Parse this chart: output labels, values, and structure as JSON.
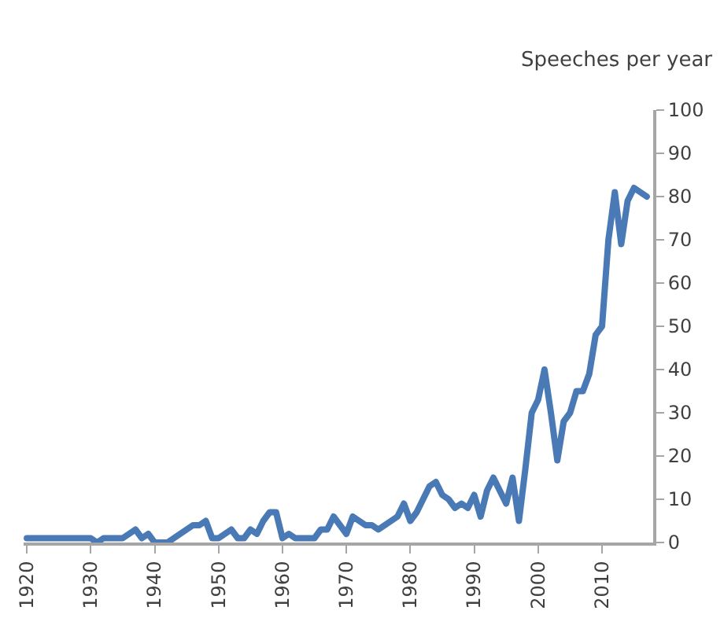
{
  "chart_data": {
    "type": "line",
    "ylabel": "Speeches per year",
    "x": [
      1920,
      1921,
      1922,
      1923,
      1924,
      1925,
      1926,
      1927,
      1928,
      1929,
      1930,
      1931,
      1932,
      1933,
      1934,
      1935,
      1936,
      1937,
      1938,
      1939,
      1940,
      1941,
      1942,
      1943,
      1944,
      1945,
      1946,
      1947,
      1948,
      1949,
      1950,
      1951,
      1952,
      1953,
      1954,
      1955,
      1956,
      1957,
      1958,
      1959,
      1960,
      1961,
      1962,
      1963,
      1964,
      1965,
      1966,
      1967,
      1968,
      1969,
      1970,
      1971,
      1972,
      1973,
      1974,
      1975,
      1976,
      1977,
      1978,
      1979,
      1980,
      1981,
      1982,
      1983,
      1984,
      1985,
      1986,
      1987,
      1988,
      1989,
      1990,
      1991,
      1992,
      1993,
      1994,
      1995,
      1996,
      1997,
      1998,
      1999,
      2000,
      2001,
      2002,
      2003,
      2004,
      2005,
      2006,
      2007,
      2008,
      2009,
      2010,
      2011,
      2012,
      2013,
      2014,
      2015,
      2016,
      2017
    ],
    "series": [
      {
        "color": "#4a7ab5",
        "values": [
          1,
          1,
          1,
          1,
          1,
          1,
          1,
          1,
          1,
          1,
          1,
          0,
          1,
          1,
          1,
          1,
          2,
          3,
          1,
          2,
          0,
          0,
          0,
          1,
          2,
          3,
          4,
          4,
          5,
          1,
          1,
          2,
          3,
          1,
          1,
          3,
          2,
          5,
          7,
          7,
          1,
          2,
          1,
          1,
          1,
          1,
          3,
          3,
          6,
          4,
          2,
          6,
          5,
          4,
          4,
          3,
          4,
          5,
          6,
          9,
          5,
          7,
          10,
          13,
          14,
          11,
          10,
          8,
          9,
          8,
          11,
          6,
          12,
          15,
          12,
          9,
          15,
          5,
          17,
          30,
          33,
          40,
          30,
          19,
          28,
          30,
          35,
          35,
          39,
          48,
          50,
          70,
          81,
          69,
          79,
          82,
          81,
          80
        ]
      }
    ],
    "xlim": [
      1919.5,
      2018
    ],
    "xticks": [
      1920,
      1930,
      1940,
      1950,
      1960,
      1970,
      1980,
      1990,
      2000,
      2010
    ],
    "ylim": [
      0,
      100
    ],
    "yticks": [
      0,
      10,
      20,
      30,
      40,
      50,
      60,
      70,
      80,
      90,
      100
    ],
    "marker": "none",
    "line_style": "solid"
  }
}
